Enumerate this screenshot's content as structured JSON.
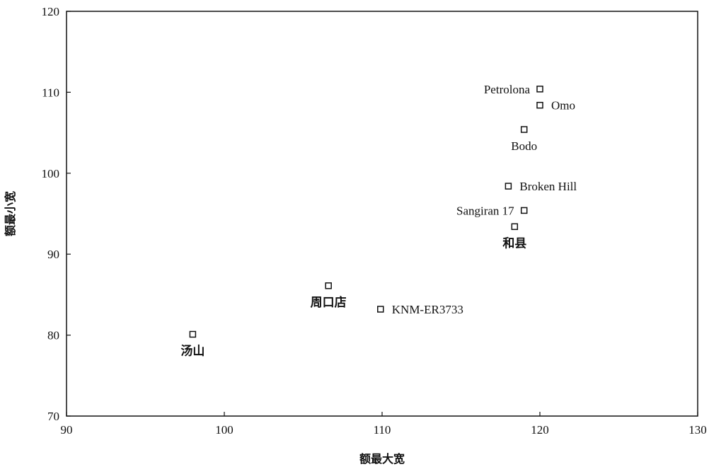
{
  "chart_data": {
    "type": "scatter",
    "title": "",
    "xlabel": "额最大宽",
    "ylabel": "额最小宽",
    "xlim": [
      90,
      130
    ],
    "ylim": [
      70,
      120
    ],
    "x_ticks": [
      90,
      100,
      110,
      120,
      130
    ],
    "y_ticks": [
      70,
      80,
      90,
      100,
      110,
      120
    ],
    "grid": false,
    "marker": "hollow-square",
    "points": [
      {
        "label": "Petrolona",
        "x": 120.0,
        "y": 110.4,
        "label_pos": "left"
      },
      {
        "label": "Omo",
        "x": 120.0,
        "y": 108.4,
        "label_pos": "right"
      },
      {
        "label": "Bodo",
        "x": 119.0,
        "y": 105.4,
        "label_pos": "below"
      },
      {
        "label": "Broken Hill",
        "x": 118.0,
        "y": 98.4,
        "label_pos": "right"
      },
      {
        "label": "Sangiran 17",
        "x": 119.0,
        "y": 95.4,
        "label_pos": "left"
      },
      {
        "label": "和县",
        "x": 118.4,
        "y": 93.4,
        "label_pos": "below"
      },
      {
        "label": "周口店",
        "x": 106.6,
        "y": 86.1,
        "label_pos": "below"
      },
      {
        "label": "KNM-ER3733",
        "x": 109.9,
        "y": 83.2,
        "label_pos": "right"
      },
      {
        "label": "汤山",
        "x": 98.0,
        "y": 80.1,
        "label_pos": "below"
      }
    ]
  }
}
